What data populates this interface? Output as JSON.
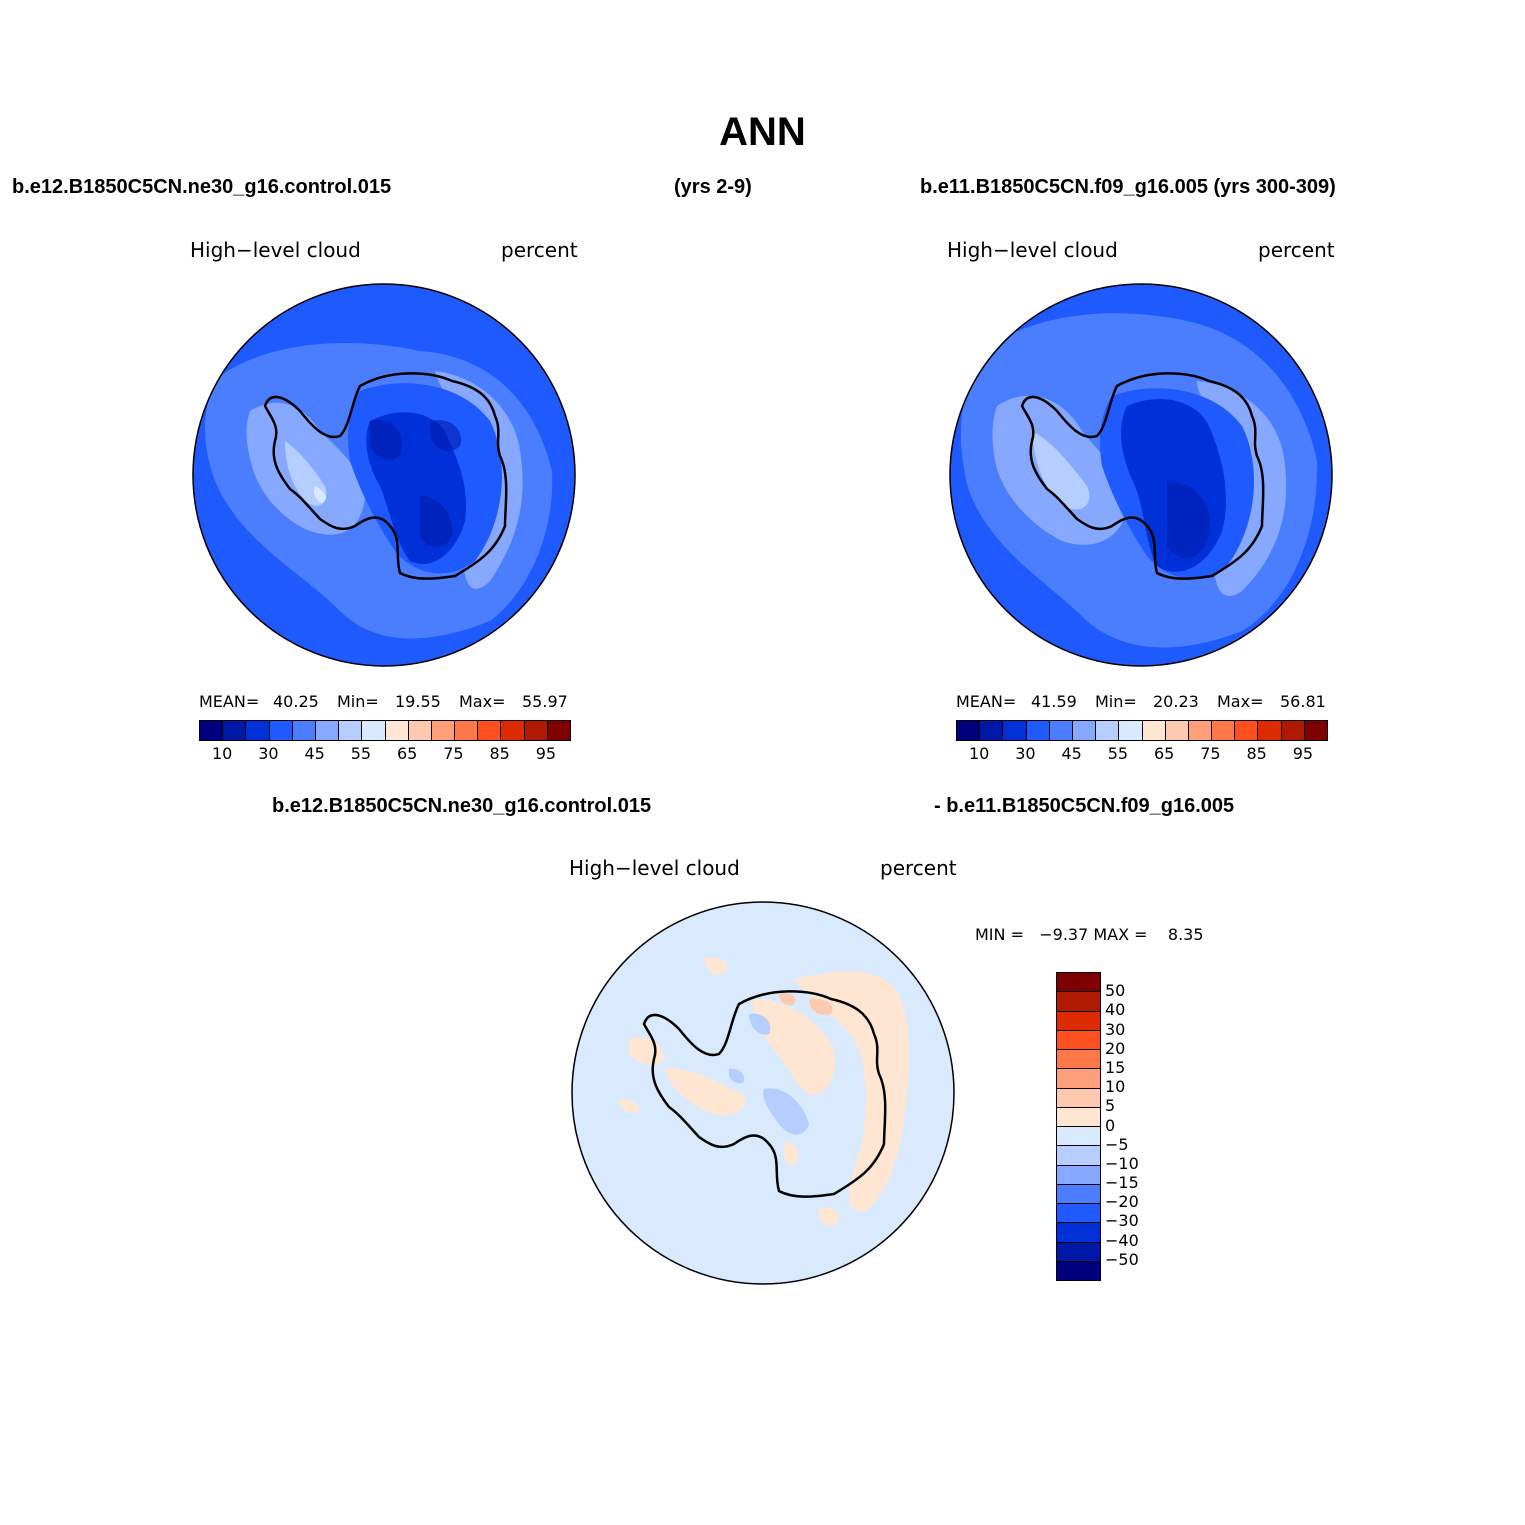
{
  "title": "ANN",
  "header": {
    "case1": "b.e12.B1850C5CN.ne30_g16.control.015",
    "case1_years": "(yrs 2-9)",
    "case2": "b.e11.B1850C5CN.f09_g16.005 (yrs 300-309)",
    "diff_left": "b.e12.B1850C5CN.ne30_g16.control.015",
    "diff_right": "- b.e11.B1850C5CN.f09_g16.005"
  },
  "panels": [
    {
      "variable": "High−level cloud",
      "units": "percent",
      "stats": {
        "mean_label": "MEAN=",
        "mean": "40.25",
        "min_label": "Min=",
        "min": "19.55",
        "max_label": "Max=",
        "max": "55.97"
      }
    },
    {
      "variable": "High−level cloud",
      "units": "percent",
      "stats": {
        "mean_label": "MEAN=",
        "mean": "41.59",
        "min_label": "Min=",
        "min": "20.23",
        "max_label": "Max=",
        "max": "56.81"
      }
    }
  ],
  "diff_panel": {
    "variable": "High−level cloud",
    "units": "percent",
    "stats": "MIN =   −9.37 MAX =    8.35"
  },
  "colorbar": {
    "colors": [
      "#00007f",
      "#0018a8",
      "#0030d8",
      "#1f5aff",
      "#4a7eff",
      "#86a8ff",
      "#b6cdff",
      "#d9eaff",
      "#ffe6d2",
      "#ffc9b0",
      "#ffa07a",
      "#ff7847",
      "#ff4f1e",
      "#dc2b00",
      "#b01a00",
      "#7f0000"
    ],
    "labels": [
      "10",
      "30",
      "45",
      "55",
      "65",
      "75",
      "85",
      "95"
    ]
  },
  "diff_colorbar": {
    "colors_top_to_bottom": [
      "#7f0000",
      "#b01a00",
      "#dc2b00",
      "#ff4f1e",
      "#ff7847",
      "#ffa07a",
      "#ffc9b0",
      "#ffe6d2",
      "#d9eaff",
      "#b6cdff",
      "#86a8ff",
      "#4a7eff",
      "#1f5aff",
      "#0030d8",
      "#0018a8",
      "#00007f"
    ],
    "labels": [
      "50",
      "40",
      "30",
      "20",
      "15",
      "10",
      "5",
      "0",
      "−5",
      "−10",
      "−15",
      "−20",
      "−30",
      "−40",
      "−50"
    ]
  }
}
